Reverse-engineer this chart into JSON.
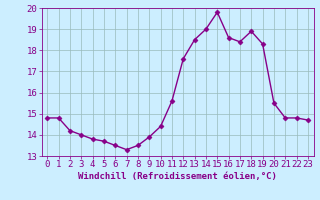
{
  "x": [
    0,
    1,
    2,
    3,
    4,
    5,
    6,
    7,
    8,
    9,
    10,
    11,
    12,
    13,
    14,
    15,
    16,
    17,
    18,
    19,
    20,
    21,
    22,
    23
  ],
  "y": [
    14.8,
    14.8,
    14.2,
    14.0,
    13.8,
    13.7,
    13.5,
    13.3,
    13.5,
    13.9,
    14.4,
    15.6,
    17.6,
    18.5,
    19.0,
    19.8,
    18.6,
    18.4,
    18.9,
    18.3,
    15.5,
    14.8,
    14.8,
    14.7
  ],
  "ylim": [
    13,
    20
  ],
  "xlim": [
    -0.5,
    23.5
  ],
  "yticks": [
    13,
    14,
    15,
    16,
    17,
    18,
    19,
    20
  ],
  "xticks": [
    0,
    1,
    2,
    3,
    4,
    5,
    6,
    7,
    8,
    9,
    10,
    11,
    12,
    13,
    14,
    15,
    16,
    17,
    18,
    19,
    20,
    21,
    22,
    23
  ],
  "xlabel": "Windchill (Refroidissement éolien,°C)",
  "line_color": "#880088",
  "marker": "D",
  "marker_size": 2.5,
  "background_color": "#cceeff",
  "grid_color": "#99bbbb",
  "text_color": "#880088",
  "tick_font_size": 6.5,
  "xlabel_font_size": 6.5,
  "linewidth": 1.0
}
